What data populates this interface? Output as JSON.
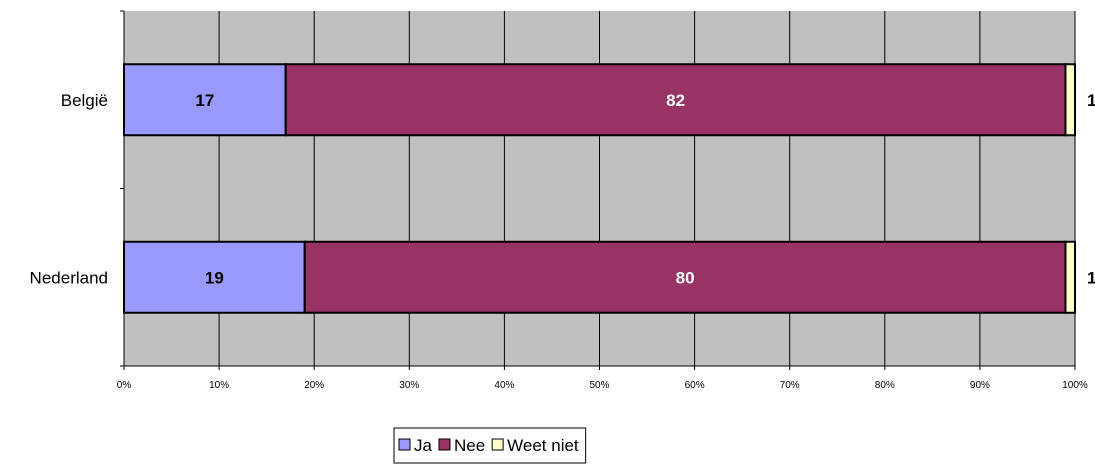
{
  "chart_data": {
    "type": "bar",
    "orientation": "horizontal",
    "stacked": "percent",
    "categories": [
      "België",
      "Nederland"
    ],
    "series": [
      {
        "name": "Ja",
        "values": [
          17,
          19
        ],
        "color": "#9999ff",
        "label_color": "#000000"
      },
      {
        "name": "Nee",
        "values": [
          82,
          80
        ],
        "color": "#993366",
        "label_color": "#ffffff"
      },
      {
        "name": "Weet niet",
        "values": [
          1,
          1
        ],
        "color": "#ffffcc",
        "label_color": "#000000"
      }
    ],
    "x_ticks": [
      "0%",
      "10%",
      "20%",
      "30%",
      "40%",
      "50%",
      "60%",
      "70%",
      "80%",
      "90%",
      "100%"
    ],
    "xlim": [
      0,
      100
    ],
    "plot_background": "#c0c0c0",
    "grid": true,
    "legend_position": "bottom",
    "title": "",
    "xlabel": "",
    "ylabel": ""
  }
}
